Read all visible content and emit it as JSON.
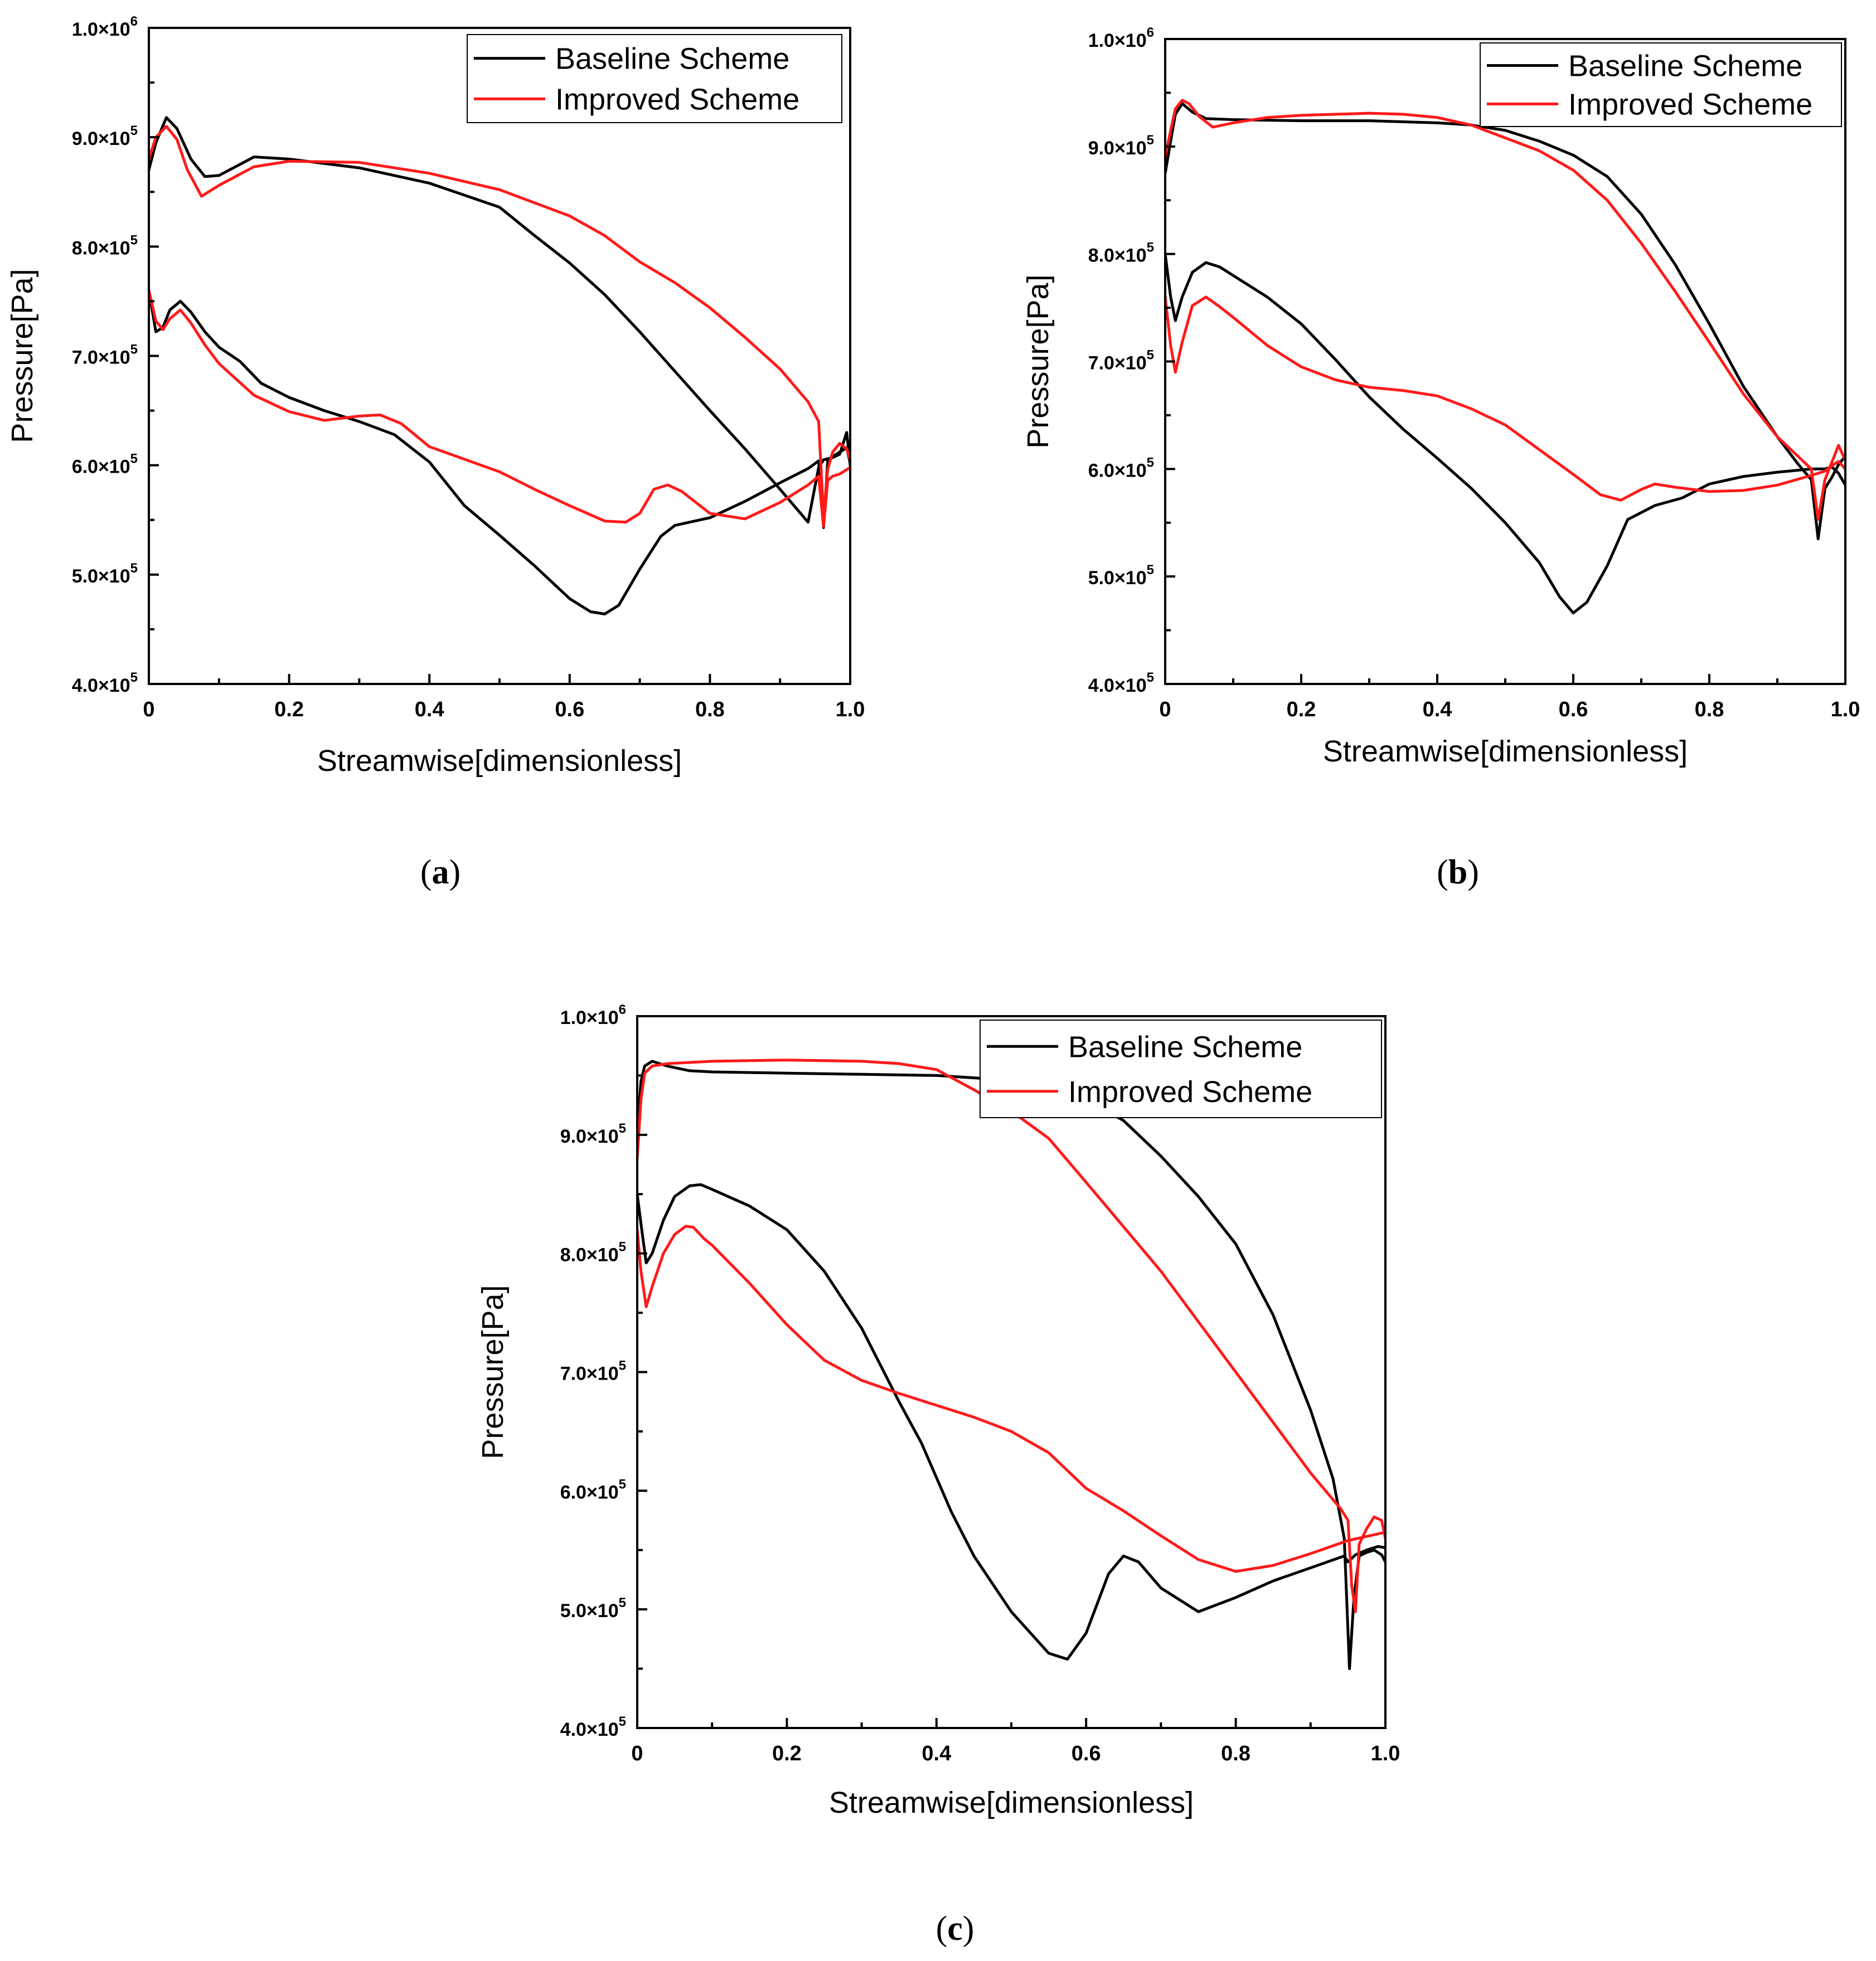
{
  "colors": {
    "baseline": "#000000",
    "improved": "#ff1a1a"
  },
  "chart_data": [
    {
      "type": "line",
      "panel_label": {
        "open": "(",
        "letter": "a",
        "close": ")"
      },
      "xlabel": "Streamwise[dimensionless]",
      "ylabel": "Pressure[Pa]",
      "xlim": [
        0,
        1.0
      ],
      "ylim": [
        400000,
        1000000
      ],
      "xticks": [
        0,
        0.2,
        0.4,
        0.6,
        0.8,
        1.0
      ],
      "xtick_labels": [
        "0",
        "0.2",
        "0.4",
        "0.6",
        "0.8",
        "1.0"
      ],
      "yticks": [
        {
          "value": 400000,
          "mantissa": "4.0×10",
          "exp": "5"
        },
        {
          "value": 500000,
          "mantissa": "5.0×10",
          "exp": "5"
        },
        {
          "value": 600000,
          "mantissa": "6.0×10",
          "exp": "5"
        },
        {
          "value": 700000,
          "mantissa": "7.0×10",
          "exp": "5"
        },
        {
          "value": 800000,
          "mantissa": "8.0×10",
          "exp": "5"
        },
        {
          "value": 900000,
          "mantissa": "9.0×10",
          "exp": "5"
        },
        {
          "value": 1000000,
          "mantissa": "1.0×10",
          "exp": "6"
        }
      ],
      "legend": [
        "Baseline Scheme",
        "Improved Scheme"
      ],
      "series": [
        {
          "name": "Baseline Scheme",
          "curve": "pressure-side",
          "x": [
            0,
            0.01,
            0.025,
            0.04,
            0.06,
            0.08,
            0.1,
            0.15,
            0.2,
            0.3,
            0.4,
            0.5,
            0.55,
            0.6,
            0.65,
            0.7,
            0.75,
            0.8,
            0.85,
            0.9,
            0.94,
            0.955,
            0.962,
            0.968,
            0.975,
            0.985,
            0.995,
            1.0
          ],
          "y": [
            870000,
            895000,
            918000,
            908000,
            880000,
            864000,
            865000,
            882000,
            880000,
            872000,
            858000,
            836000,
            810000,
            785000,
            756000,
            722000,
            686000,
            650000,
            615000,
            578000,
            548000,
            598000,
            605000,
            606000,
            607000,
            610000,
            630000,
            600000
          ]
        },
        {
          "name": "Baseline Scheme",
          "curve": "suction-side",
          "x": [
            0,
            0.01,
            0.02,
            0.03,
            0.045,
            0.06,
            0.08,
            0.1,
            0.13,
            0.16,
            0.2,
            0.25,
            0.3,
            0.35,
            0.4,
            0.45,
            0.5,
            0.55,
            0.6,
            0.63,
            0.65,
            0.67,
            0.7,
            0.73,
            0.75,
            0.8,
            0.85,
            0.9,
            0.94,
            0.955,
            0.962,
            0.968,
            0.975,
            0.985,
            0.995,
            1.0
          ],
          "y": [
            760000,
            722000,
            726000,
            742000,
            750000,
            740000,
            722000,
            708000,
            695000,
            675000,
            662000,
            650000,
            640000,
            628000,
            603000,
            563000,
            536000,
            508000,
            478000,
            466000,
            464000,
            472000,
            505000,
            535000,
            545000,
            552000,
            567000,
            584000,
            597000,
            604000,
            543000,
            604000,
            608000,
            612000,
            616000,
            602000
          ]
        },
        {
          "name": "Improved Scheme",
          "curve": "pressure-side",
          "x": [
            0,
            0.01,
            0.025,
            0.04,
            0.055,
            0.075,
            0.1,
            0.15,
            0.2,
            0.3,
            0.4,
            0.5,
            0.6,
            0.65,
            0.7,
            0.75,
            0.8,
            0.85,
            0.9,
            0.94,
            0.955,
            0.962,
            0.968,
            0.975,
            0.985,
            0.995,
            1.0
          ],
          "y": [
            880000,
            900000,
            910000,
            898000,
            870000,
            846000,
            856000,
            873000,
            878000,
            877000,
            867000,
            852000,
            828000,
            810000,
            786000,
            767000,
            744000,
            717000,
            688000,
            658000,
            640000,
            553000,
            596000,
            612000,
            620000,
            615000,
            605000
          ]
        },
        {
          "name": "Improved Scheme",
          "curve": "suction-side",
          "x": [
            0,
            0.01,
            0.02,
            0.03,
            0.045,
            0.06,
            0.08,
            0.1,
            0.15,
            0.2,
            0.25,
            0.3,
            0.33,
            0.36,
            0.4,
            0.5,
            0.55,
            0.6,
            0.65,
            0.68,
            0.7,
            0.72,
            0.74,
            0.76,
            0.8,
            0.85,
            0.9,
            0.94,
            0.955,
            0.962,
            0.968,
            0.975,
            0.985,
            0.995,
            1.0
          ],
          "y": [
            760000,
            732000,
            724000,
            734000,
            742000,
            730000,
            710000,
            693000,
            664000,
            649000,
            641000,
            645000,
            646000,
            638000,
            617000,
            594000,
            578000,
            563000,
            549000,
            548000,
            556000,
            578000,
            582000,
            576000,
            556000,
            551000,
            566000,
            582000,
            590000,
            544000,
            586000,
            590000,
            592000,
            596000,
            598000
          ]
        }
      ]
    },
    {
      "type": "line",
      "panel_label": {
        "open": "(",
        "letter": "b",
        "close": ")"
      },
      "xlabel": "Streamwise[dimensionless]",
      "ylabel": "Pressure[Pa]",
      "xlim": [
        0,
        1.0
      ],
      "ylim": [
        400000,
        1000000
      ],
      "xticks": [
        0,
        0.2,
        0.4,
        0.6,
        0.8,
        1.0
      ],
      "xtick_labels": [
        "0",
        "0.2",
        "0.4",
        "0.6",
        "0.8",
        "1.0"
      ],
      "yticks": [
        {
          "value": 400000,
          "mantissa": "4.0×10",
          "exp": "5"
        },
        {
          "value": 500000,
          "mantissa": "5.0×10",
          "exp": "5"
        },
        {
          "value": 600000,
          "mantissa": "6.0×10",
          "exp": "5"
        },
        {
          "value": 700000,
          "mantissa": "7.0×10",
          "exp": "5"
        },
        {
          "value": 800000,
          "mantissa": "8.0×10",
          "exp": "5"
        },
        {
          "value": 900000,
          "mantissa": "9.0×10",
          "exp": "5"
        },
        {
          "value": 1000000,
          "mantissa": "1.0×10",
          "exp": "6"
        }
      ],
      "legend": [
        "Baseline Scheme",
        "Improved Scheme"
      ],
      "series": [
        {
          "name": "Baseline Scheme",
          "curve": "pressure-side",
          "x": [
            0,
            0.008,
            0.015,
            0.025,
            0.04,
            0.06,
            0.1,
            0.2,
            0.3,
            0.4,
            0.45,
            0.5,
            0.55,
            0.6,
            0.65,
            0.7,
            0.75,
            0.8,
            0.85,
            0.9,
            0.93,
            0.95,
            0.96,
            0.97,
            0.98,
            0.99,
            1.0
          ],
          "y": [
            875000,
            905000,
            930000,
            940000,
            932000,
            926000,
            925000,
            924000,
            924000,
            922000,
            920000,
            915000,
            905000,
            892000,
            872000,
            837000,
            790000,
            735000,
            677000,
            630000,
            605000,
            590000,
            535000,
            582000,
            592000,
            604000,
            612000
          ]
        },
        {
          "name": "Baseline Scheme",
          "curve": "suction-side",
          "x": [
            0,
            0.008,
            0.015,
            0.025,
            0.04,
            0.06,
            0.08,
            0.1,
            0.15,
            0.2,
            0.25,
            0.3,
            0.35,
            0.4,
            0.45,
            0.5,
            0.55,
            0.58,
            0.6,
            0.62,
            0.65,
            0.68,
            0.72,
            0.76,
            0.8,
            0.85,
            0.9,
            0.95,
            0.97,
            0.98,
            0.99,
            1.0
          ],
          "y": [
            800000,
            760000,
            738000,
            760000,
            783000,
            792000,
            788000,
            780000,
            760000,
            735000,
            702000,
            667000,
            637000,
            610000,
            582000,
            550000,
            513000,
            481000,
            466000,
            476000,
            510000,
            553000,
            566000,
            573000,
            586000,
            593000,
            597000,
            600000,
            600000,
            602000,
            596000,
            585000
          ]
        },
        {
          "name": "Improved Scheme",
          "curve": "pressure-side",
          "x": [
            0,
            0.008,
            0.015,
            0.025,
            0.035,
            0.05,
            0.07,
            0.1,
            0.15,
            0.2,
            0.25,
            0.3,
            0.35,
            0.4,
            0.45,
            0.5,
            0.55,
            0.6,
            0.65,
            0.7,
            0.75,
            0.8,
            0.85,
            0.9,
            0.93,
            0.95,
            0.96,
            0.97,
            0.98,
            0.99,
            1.0
          ],
          "y": [
            890000,
            915000,
            935000,
            943000,
            940000,
            928000,
            918000,
            922000,
            927000,
            929000,
            930000,
            931000,
            930000,
            927000,
            920000,
            908000,
            896000,
            878000,
            850000,
            810000,
            765000,
            718000,
            670000,
            630000,
            612000,
            600000,
            553000,
            590000,
            606000,
            622000,
            608000
          ]
        },
        {
          "name": "Improved Scheme",
          "curve": "suction-side",
          "x": [
            0,
            0.008,
            0.015,
            0.025,
            0.04,
            0.06,
            0.08,
            0.1,
            0.15,
            0.2,
            0.25,
            0.3,
            0.35,
            0.4,
            0.45,
            0.5,
            0.55,
            0.6,
            0.64,
            0.67,
            0.7,
            0.72,
            0.75,
            0.8,
            0.85,
            0.9,
            0.95,
            0.97,
            0.98,
            0.99,
            1.0
          ],
          "y": [
            760000,
            715000,
            690000,
            718000,
            752000,
            760000,
            751000,
            741000,
            715000,
            695000,
            683000,
            676000,
            673000,
            668000,
            656000,
            641000,
            618000,
            595000,
            576000,
            571000,
            581000,
            586000,
            583000,
            579000,
            580000,
            585000,
            594000,
            598000,
            603000,
            607000,
            600000
          ]
        }
      ]
    },
    {
      "type": "line",
      "panel_label": {
        "open": "(",
        "letter": "c",
        "close": ")"
      },
      "xlabel": "Streamwise[dimensionless]",
      "ylabel": "Pressure[Pa]",
      "xlim": [
        0,
        1.0
      ],
      "ylim": [
        400000,
        1000000
      ],
      "xticks": [
        0,
        0.2,
        0.4,
        0.6,
        0.8,
        1.0
      ],
      "xtick_labels": [
        "0",
        "0.2",
        "0.4",
        "0.6",
        "0.8",
        "1.0"
      ],
      "yticks": [
        {
          "value": 400000,
          "mantissa": "4.0×10",
          "exp": "5"
        },
        {
          "value": 500000,
          "mantissa": "5.0×10",
          "exp": "5"
        },
        {
          "value": 600000,
          "mantissa": "6.0×10",
          "exp": "5"
        },
        {
          "value": 700000,
          "mantissa": "7.0×10",
          "exp": "5"
        },
        {
          "value": 800000,
          "mantissa": "8.0×10",
          "exp": "5"
        },
        {
          "value": 900000,
          "mantissa": "9.0×10",
          "exp": "5"
        },
        {
          "value": 1000000,
          "mantissa": "1.0×10",
          "exp": "6"
        }
      ],
      "legend": [
        "Baseline Scheme",
        "Improved Scheme"
      ],
      "series": [
        {
          "name": "Baseline Scheme",
          "curve": "pressure-side",
          "x": [
            0,
            0.005,
            0.01,
            0.02,
            0.04,
            0.07,
            0.1,
            0.2,
            0.3,
            0.4,
            0.5,
            0.6,
            0.65,
            0.7,
            0.75,
            0.8,
            0.85,
            0.9,
            0.93,
            0.945,
            0.952,
            0.958,
            0.965,
            0.975,
            0.985,
            0.995,
            1.0
          ],
          "y": [
            900000,
            945000,
            958000,
            962000,
            958000,
            954000,
            953000,
            952000,
            951000,
            950000,
            946000,
            930000,
            912000,
            882000,
            848000,
            808000,
            748000,
            668000,
            610000,
            560000,
            450000,
            510000,
            545000,
            548000,
            550000,
            546000,
            540000
          ]
        },
        {
          "name": "Baseline Scheme",
          "curve": "suction-side",
          "x": [
            0,
            0.005,
            0.012,
            0.02,
            0.035,
            0.05,
            0.07,
            0.085,
            0.1,
            0.15,
            0.2,
            0.25,
            0.3,
            0.35,
            0.38,
            0.42,
            0.45,
            0.5,
            0.55,
            0.575,
            0.6,
            0.63,
            0.65,
            0.67,
            0.7,
            0.75,
            0.8,
            0.85,
            0.9,
            0.945,
            0.95,
            0.96,
            0.975,
            0.99,
            1.0
          ],
          "y": [
            850000,
            825000,
            792000,
            800000,
            828000,
            848000,
            857000,
            858000,
            854000,
            840000,
            820000,
            785000,
            737000,
            675000,
            640000,
            582000,
            545000,
            498000,
            463000,
            458000,
            480000,
            530000,
            545000,
            540000,
            518000,
            498000,
            510000,
            524000,
            535000,
            545000,
            540000,
            546000,
            550000,
            553000,
            552000
          ]
        },
        {
          "name": "Improved Scheme",
          "curve": "pressure-side",
          "x": [
            0,
            0.005,
            0.01,
            0.02,
            0.04,
            0.07,
            0.1,
            0.2,
            0.3,
            0.35,
            0.4,
            0.45,
            0.5,
            0.55,
            0.6,
            0.7,
            0.8,
            0.9,
            0.94,
            0.95,
            0.955,
            0.96,
            0.965,
            0.975,
            0.985,
            0.995,
            1.0
          ],
          "y": [
            880000,
            930000,
            952000,
            958000,
            960000,
            961000,
            962000,
            963000,
            962000,
            960000,
            955000,
            938000,
            920000,
            897000,
            860000,
            785000,
            700000,
            615000,
            585000,
            575000,
            520000,
            498000,
            555000,
            568000,
            578000,
            575000,
            560000
          ]
        },
        {
          "name": "Improved Scheme",
          "curve": "suction-side",
          "x": [
            0,
            0.005,
            0.012,
            0.02,
            0.035,
            0.05,
            0.065,
            0.075,
            0.09,
            0.1,
            0.15,
            0.2,
            0.25,
            0.3,
            0.35,
            0.4,
            0.45,
            0.5,
            0.55,
            0.6,
            0.65,
            0.7,
            0.75,
            0.8,
            0.85,
            0.9,
            0.95,
            1.0
          ],
          "y": [
            820000,
            785000,
            755000,
            772000,
            800000,
            816000,
            823000,
            822000,
            812000,
            807000,
            775000,
            740000,
            710000,
            693000,
            682000,
            672000,
            662000,
            650000,
            632000,
            602000,
            583000,
            562000,
            542000,
            532000,
            537000,
            547000,
            558000,
            565000
          ]
        }
      ]
    }
  ]
}
